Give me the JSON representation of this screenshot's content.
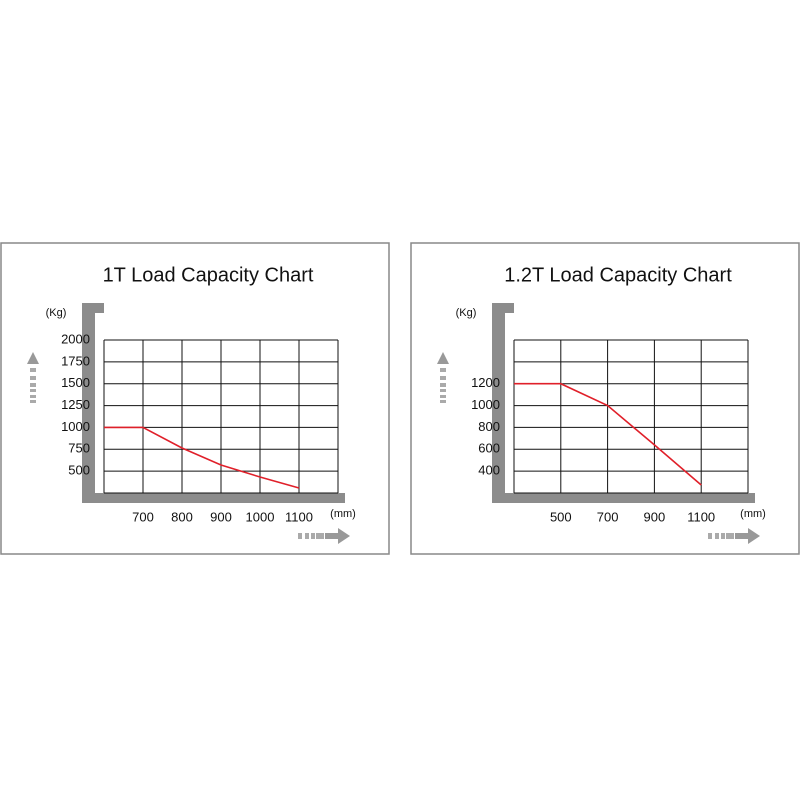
{
  "chart_data": [
    {
      "type": "line",
      "title": "1T Load Capacity Chart",
      "y_label": "(Kg)",
      "x_label": "(mm)",
      "x": [
        600,
        700,
        800,
        900,
        1000,
        1100
      ],
      "series": [
        {
          "color": "#e0202a",
          "values": [
            1000,
            1000,
            765,
            570,
            433,
            307
          ]
        }
      ],
      "xlim": [
        600,
        1200
      ],
      "xticks": [
        700,
        800,
        900,
        1000,
        1100
      ],
      "ylim": [
        250,
        2000
      ],
      "yticks": [
        500,
        750,
        1000,
        1250,
        1500,
        1750,
        2000
      ],
      "grid": true
    },
    {
      "type": "line",
      "title": "1.2T Load Capacity Chart",
      "y_label": "(Kg)",
      "x_label": "(mm)",
      "categories": [
        null,
        "500",
        "700",
        "900",
        "1100",
        null
      ],
      "series": [
        {
          "color": "#e0202a",
          "values": [
            1200,
            1200,
            1000,
            640,
            273,
            null
          ]
        }
      ],
      "ylim": [
        200,
        1600
      ],
      "yticks": [
        400,
        600,
        800,
        1000,
        1200
      ],
      "grid": true
    }
  ]
}
